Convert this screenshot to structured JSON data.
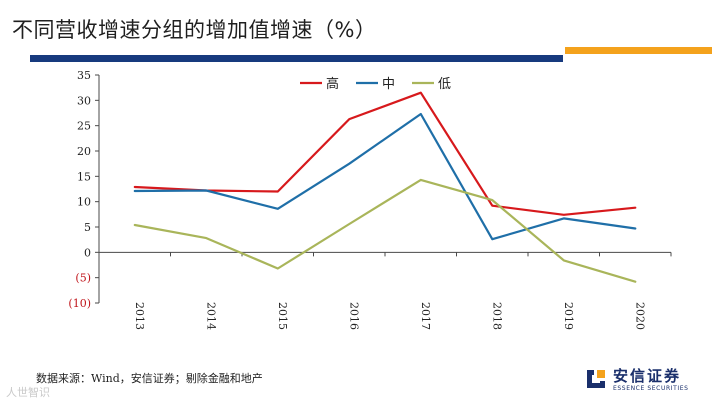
{
  "title": "不同营收增速分组的增加值增速（%）",
  "source": "数据来源：Wind，安信证券；剔除金融和地产",
  "watermark": "人世智识",
  "logo": {
    "cn": "安信证券",
    "en": "ESSENCE SECURITIES"
  },
  "colors": {
    "navy_bar": "#173a7e",
    "orange_bar": "#f4a21c",
    "axis": "#4a4a4a",
    "negative_label": "#c0151b"
  },
  "chart_data": {
    "type": "line",
    "categories": [
      "2013",
      "2014",
      "2015",
      "2016",
      "2017",
      "2018",
      "2019",
      "2020"
    ],
    "ylim": [
      -10,
      35
    ],
    "yticks": [
      35,
      30,
      25,
      20,
      15,
      10,
      5,
      0,
      -5,
      -10
    ],
    "ytick_labels": [
      "35",
      "30",
      "25",
      "20",
      "15",
      "10",
      "5",
      "0",
      "(5)",
      "(10)"
    ],
    "legend_position": "top-center",
    "series": [
      {
        "name": "高",
        "color": "#d7191c",
        "values": [
          12.9,
          12.2,
          12.0,
          26.3,
          31.5,
          9.2,
          7.4,
          8.8
        ]
      },
      {
        "name": "中",
        "color": "#1f6fa8",
        "values": [
          12.1,
          12.2,
          8.6,
          17.5,
          27.3,
          2.6,
          6.7,
          4.7
        ]
      },
      {
        "name": "低",
        "color": "#a9b55a",
        "values": [
          5.4,
          2.8,
          -3.2,
          5.6,
          14.3,
          10.3,
          -1.6,
          -5.8
        ]
      }
    ]
  }
}
